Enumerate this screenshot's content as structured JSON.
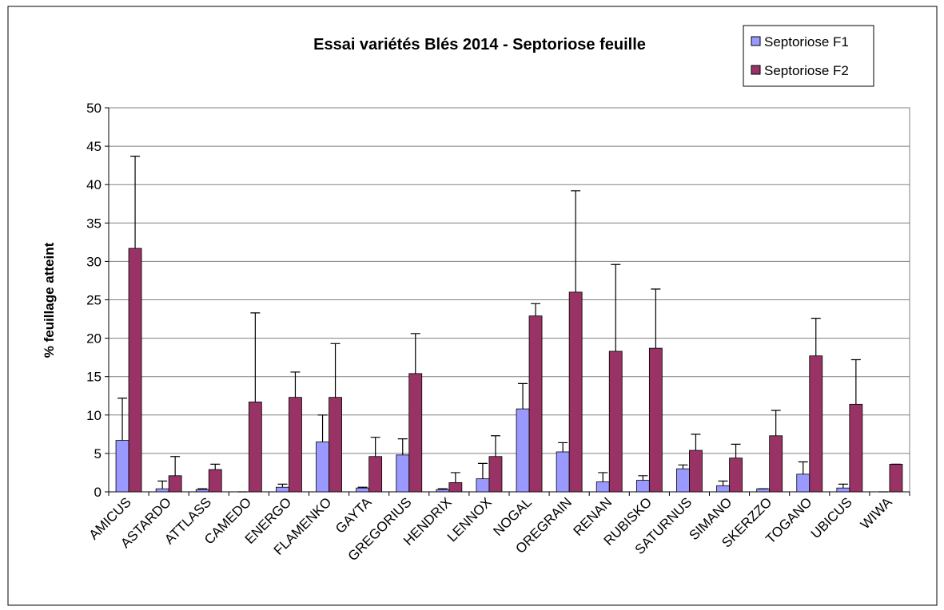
{
  "chart_data": {
    "type": "bar",
    "title": "Essai variétés Blés 2014 - Septoriose feuille",
    "y_label": "% feuillage atteint",
    "categories": [
      "AMICUS",
      "ASTARDO",
      "ATTLASS",
      "CAMEDO",
      "ENERGO",
      "FLAMENKO",
      "GAYTA",
      "GREGORIUS",
      "HENDRIX",
      "LENNOX",
      "NOGAL",
      "OREGRAIN",
      "RENAN",
      "RUBISKO",
      "SATURNUS",
      "SIMANO",
      "SKERZZO",
      "TOGANO",
      "UBICUS",
      "WIWA"
    ],
    "series": [
      {
        "name": "Septoriose F1",
        "color": "#9999ff",
        "values": [
          6.7,
          0.4,
          0.3,
          0,
          0.6,
          6.5,
          0.5,
          4.8,
          0.3,
          1.7,
          10.8,
          5.2,
          1.3,
          1.5,
          3.0,
          0.8,
          0.4,
          2.3,
          0.5,
          0
        ],
        "errors": [
          5.5,
          1.0,
          0.1,
          0,
          0.4,
          3.5,
          0.1,
          2.1,
          0.1,
          2.0,
          3.3,
          1.2,
          1.2,
          0.6,
          0.5,
          0.6,
          0,
          1.6,
          0.5,
          0
        ]
      },
      {
        "name": "Septoriose F2",
        "color": "#993366",
        "values": [
          31.7,
          2.1,
          2.9,
          11.7,
          12.3,
          12.3,
          4.6,
          15.4,
          1.2,
          4.6,
          22.9,
          26,
          18.3,
          18.7,
          5.4,
          4.4,
          7.3,
          17.7,
          11.4,
          3.6
        ],
        "errors": [
          12,
          2.5,
          0.7,
          11.6,
          3.3,
          7,
          2.5,
          5.2,
          1.3,
          2.7,
          1.6,
          13.2,
          11.3,
          7.7,
          2.1,
          1.8,
          3.3,
          4.9,
          5.8,
          0
        ]
      }
    ],
    "ylim": [
      0,
      50
    ],
    "yticks": [
      0,
      5,
      10,
      15,
      20,
      25,
      30,
      35,
      40,
      45,
      50
    ],
    "grid": true,
    "legend": "top-right"
  }
}
